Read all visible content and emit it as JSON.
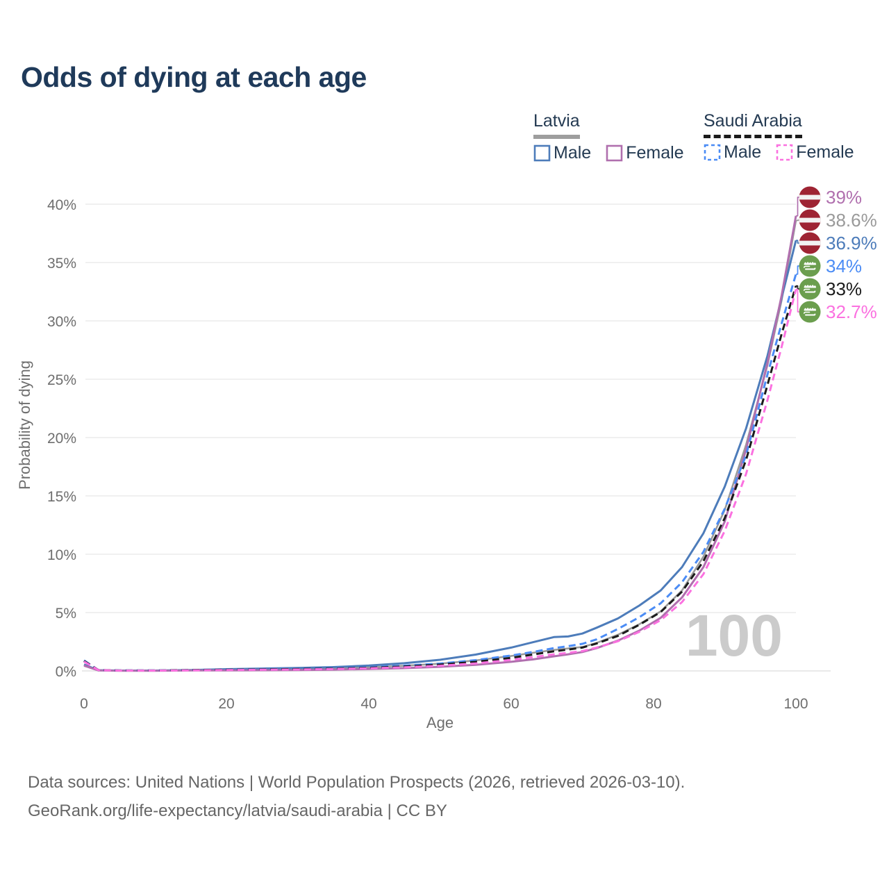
{
  "title": "Odds of dying at each age",
  "legend": {
    "groups": [
      {
        "name": "Latvia",
        "underline_color": "#9e9e9e",
        "underline_style": "solid",
        "items": [
          {
            "label": "Male",
            "color": "#4d7cba",
            "dash": false
          },
          {
            "label": "Female",
            "color": "#b06fae",
            "dash": false
          }
        ]
      },
      {
        "name": "Saudi Arabia",
        "underline_color": "#1b1b1b",
        "underline_style": "dashed",
        "items": [
          {
            "label": "Male",
            "color": "#4b8cf5",
            "dash": true
          },
          {
            "label": "Female",
            "color": "#fb71e0",
            "dash": true
          }
        ]
      }
    ]
  },
  "chart_data": {
    "type": "line",
    "title": "Odds of dying at each age",
    "xlabel": "Age",
    "ylabel": "Probability of dying",
    "xlim": [
      0,
      100
    ],
    "ylim": [
      0,
      40
    ],
    "x_ticks": [
      0,
      20,
      40,
      60,
      80,
      100
    ],
    "y_ticks": [
      "0%",
      "5%",
      "10%",
      "15%",
      "20%",
      "25%",
      "30%",
      "35%",
      "40%"
    ],
    "y_tick_values": [
      0,
      5,
      10,
      15,
      20,
      25,
      30,
      35,
      40
    ],
    "grid": "horizontal",
    "legend_position": "top-right",
    "watermark": "100",
    "x": [
      0,
      2,
      5,
      10,
      15,
      20,
      25,
      30,
      35,
      40,
      45,
      50,
      55,
      60,
      63,
      66,
      68,
      70,
      72,
      75,
      78,
      81,
      84,
      87,
      90,
      93,
      96,
      98,
      100
    ],
    "series": [
      {
        "name": "Latvia Total",
        "country": "Latvia",
        "sex": "total",
        "style": "solid",
        "color": "#9a9a9a",
        "width": 2.6,
        "flag": "latvia",
        "end_label": "38.6%",
        "end_value": 38.6,
        "end_label_color": "#9a9a9a",
        "values": [
          0.5,
          0.055,
          0.025,
          0.025,
          0.06,
          0.1,
          0.13,
          0.17,
          0.22,
          0.31,
          0.44,
          0.62,
          0.9,
          1.28,
          1.55,
          1.8,
          1.92,
          2.05,
          2.4,
          3.1,
          4.0,
          5.1,
          6.9,
          9.8,
          13.8,
          19.4,
          26.2,
          31.8,
          38.6
        ]
      },
      {
        "name": "Latvia Male",
        "country": "Latvia",
        "sex": "male",
        "style": "solid",
        "color": "#4d7cba",
        "width": 3,
        "flag": "latvia",
        "end_label": "36.9%",
        "end_value": 36.9,
        "end_label_color": "#4d7cba",
        "values": [
          0.55,
          0.06,
          0.03,
          0.03,
          0.08,
          0.15,
          0.2,
          0.25,
          0.33,
          0.46,
          0.66,
          0.95,
          1.4,
          2.0,
          2.45,
          2.9,
          2.95,
          3.2,
          3.7,
          4.5,
          5.6,
          6.9,
          8.9,
          11.8,
          15.8,
          20.8,
          27.0,
          32.0,
          36.9
        ]
      },
      {
        "name": "Latvia Female",
        "country": "Latvia",
        "sex": "female",
        "style": "solid",
        "color": "#b06fae",
        "width": 3,
        "flag": "latvia",
        "end_label": "39%",
        "end_value": 39.0,
        "end_label_color": "#b06fae",
        "values": [
          0.45,
          0.05,
          0.02,
          0.02,
          0.04,
          0.05,
          0.06,
          0.08,
          0.11,
          0.16,
          0.24,
          0.35,
          0.52,
          0.78,
          0.98,
          1.25,
          1.42,
          1.62,
          1.95,
          2.6,
          3.45,
          4.55,
          6.3,
          8.9,
          12.8,
          19.0,
          26.4,
          32.2,
          39.0
        ]
      },
      {
        "name": "Saudi Arabia Male",
        "country": "Saudi Arabia",
        "sex": "male",
        "style": "dashed",
        "color": "#4b8cf5",
        "width": 3,
        "flag": "saudi-arabia",
        "end_label": "34%",
        "end_value": 34.0,
        "end_label_color": "#4b8cf5",
        "values": [
          0.9,
          0.08,
          0.04,
          0.04,
          0.08,
          0.13,
          0.16,
          0.19,
          0.24,
          0.32,
          0.45,
          0.63,
          0.92,
          1.32,
          1.62,
          1.95,
          2.12,
          2.32,
          2.7,
          3.6,
          4.6,
          5.8,
          7.6,
          10.2,
          13.9,
          18.5,
          25.4,
          29.8,
          34.0
        ]
      },
      {
        "name": "Saudi Arabia Total",
        "country": "Saudi Arabia",
        "sex": "total",
        "style": "dashed",
        "color": "#1b1b1b",
        "width": 3,
        "flag": "saudi-arabia",
        "end_label": "33%",
        "end_value": 33.0,
        "end_label_color": "#1b1b1b",
        "values": [
          0.85,
          0.075,
          0.035,
          0.035,
          0.07,
          0.11,
          0.13,
          0.16,
          0.2,
          0.27,
          0.38,
          0.54,
          0.78,
          1.12,
          1.4,
          1.68,
          1.83,
          2.0,
          2.35,
          3.0,
          3.95,
          5.05,
          6.8,
          9.4,
          13.1,
          18.1,
          24.5,
          28.9,
          33.0
        ]
      },
      {
        "name": "Saudi Arabia Female",
        "country": "Saudi Arabia",
        "sex": "female",
        "style": "dashed",
        "color": "#fb71e0",
        "width": 3,
        "flag": "saudi-arabia",
        "end_label": "32.7%",
        "end_value": 32.7,
        "end_label_color": "#fb71e0",
        "values": [
          0.8,
          0.07,
          0.03,
          0.03,
          0.05,
          0.08,
          0.1,
          0.12,
          0.16,
          0.22,
          0.31,
          0.44,
          0.64,
          0.94,
          1.18,
          1.42,
          1.55,
          1.7,
          2.0,
          2.55,
          3.35,
          4.35,
          5.9,
          8.3,
          12.0,
          16.9,
          23.2,
          27.8,
          32.7
        ]
      }
    ]
  },
  "footer": {
    "line1": "Data sources: United Nations | World Population Prospects (2026, retrieved 2026-03-10).",
    "line2": "GeoRank.org/life-expectancy/latvia/saudi-arabia | CC BY"
  }
}
